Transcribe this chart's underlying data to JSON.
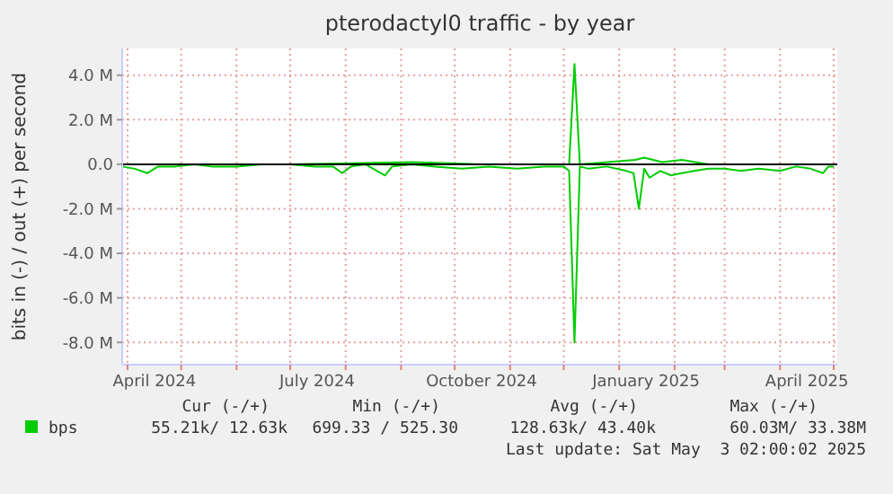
{
  "chart_data": {
    "type": "line",
    "title": "pterodactyl0 traffic - by year",
    "ylabel": "bits in (-) / out (+) per second",
    "xlim": [
      "2024-03-29",
      "2025-05-03"
    ],
    "xticks": [
      {
        "value": "2024-04-01",
        "label": null
      },
      {
        "value": "2024-04-16",
        "label": "April 2024"
      },
      {
        "value": "2024-05-01",
        "label": null
      },
      {
        "value": "2024-06-01",
        "label": null
      },
      {
        "value": "2024-07-01",
        "label": null
      },
      {
        "value": "2024-07-16",
        "label": "July 2024"
      },
      {
        "value": "2024-08-01",
        "label": null
      },
      {
        "value": "2024-09-01",
        "label": null
      },
      {
        "value": "2024-10-01",
        "label": null
      },
      {
        "value": "2024-10-16",
        "label": "October 2024"
      },
      {
        "value": "2024-11-01",
        "label": null
      },
      {
        "value": "2024-12-01",
        "label": null
      },
      {
        "value": "2025-01-01",
        "label": null
      },
      {
        "value": "2025-01-16",
        "label": "January 2025"
      },
      {
        "value": "2025-02-01",
        "label": null
      },
      {
        "value": "2025-03-01",
        "label": null
      },
      {
        "value": "2025-04-01",
        "label": null
      },
      {
        "value": "2025-04-16",
        "label": "April 2025"
      },
      {
        "value": "2025-05-01",
        "label": null
      }
    ],
    "ylim": [
      -9000000,
      5200000
    ],
    "yticks": [
      {
        "value": -8000000,
        "label": "-8.0 M"
      },
      {
        "value": -6000000,
        "label": "-6.0 M"
      },
      {
        "value": -4000000,
        "label": "-4.0 M"
      },
      {
        "value": -2000000,
        "label": "-2.0 M"
      },
      {
        "value": 0,
        "label": "0.0"
      },
      {
        "value": 2000000,
        "label": "2.0 M"
      },
      {
        "value": 4000000,
        "label": "4.0 M"
      }
    ],
    "grid": true,
    "legend": "bottom",
    "ref_lines": [
      {
        "axis": "y",
        "value": 0,
        "color": "#000000"
      }
    ],
    "series": [
      {
        "name": "bps",
        "color": "#00cc00",
        "x": [
          "2024-03-29",
          "2024-05-01",
          "2024-07-01",
          "2024-09-07",
          "2024-10-15",
          "2024-12-04",
          "2024-12-07",
          "2024-12-10",
          "2025-01-10",
          "2025-01-15",
          "2025-01-25",
          "2025-02-05",
          "2025-02-20",
          "2025-03-15",
          "2025-04-10",
          "2025-05-01"
        ],
        "values": [
          0,
          0,
          0,
          100000,
          0,
          0,
          4500000,
          0,
          200000,
          300000,
          100000,
          200000,
          0,
          0,
          0,
          0
        ]
      },
      {
        "color": "#00cc00",
        "x": [
          "2024-03-29",
          "2024-04-05",
          "2024-04-12",
          "2024-04-18",
          "2024-04-28",
          "2024-05-08",
          "2024-05-18",
          "2024-06-01",
          "2024-06-15",
          "2024-07-01",
          "2024-07-15",
          "2024-07-25",
          "2024-07-30",
          "2024-08-04",
          "2024-08-12",
          "2024-08-23",
          "2024-08-27",
          "2024-09-07",
          "2024-09-20",
          "2024-10-05",
          "2024-10-20",
          "2024-11-05",
          "2024-11-20",
          "2024-12-01",
          "2024-12-04",
          "2024-12-07",
          "2024-12-10",
          "2024-12-15",
          "2024-12-25",
          "2025-01-05",
          "2025-01-09",
          "2025-01-12",
          "2025-01-15",
          "2025-01-18",
          "2025-01-24",
          "2025-01-30",
          "2025-02-05",
          "2025-02-12",
          "2025-02-20",
          "2025-03-01",
          "2025-03-10",
          "2025-03-20",
          "2025-04-01",
          "2025-04-10",
          "2025-04-18",
          "2025-04-25",
          "2025-04-28",
          "2025-05-01"
        ],
        "values": [
          -100000,
          -200000,
          -400000,
          -100000,
          -100000,
          0,
          -100000,
          -100000,
          0,
          0,
          -100000,
          -100000,
          -400000,
          -100000,
          0,
          -500000,
          -100000,
          0,
          -100000,
          -200000,
          -100000,
          -200000,
          -100000,
          -100000,
          -300000,
          -8000000,
          -100000,
          -200000,
          -100000,
          -300000,
          -400000,
          -2000000,
          -200000,
          -600000,
          -300000,
          -500000,
          -400000,
          -300000,
          -200000,
          -200000,
          -300000,
          -200000,
          -300000,
          -100000,
          -200000,
          -400000,
          -100000,
          -100000
        ]
      }
    ],
    "annotations": [
      "Cur (-/+)",
      "Min (-/+)",
      "Avg (-/+)",
      "Max (-/+)",
      "55.21k/ 12.63k",
      "699.33 / 525.30",
      "128.63k/ 43.40k",
      "60.03M/ 33.38M",
      "Last update: Sat May  3 02:00:02 2025"
    ]
  }
}
